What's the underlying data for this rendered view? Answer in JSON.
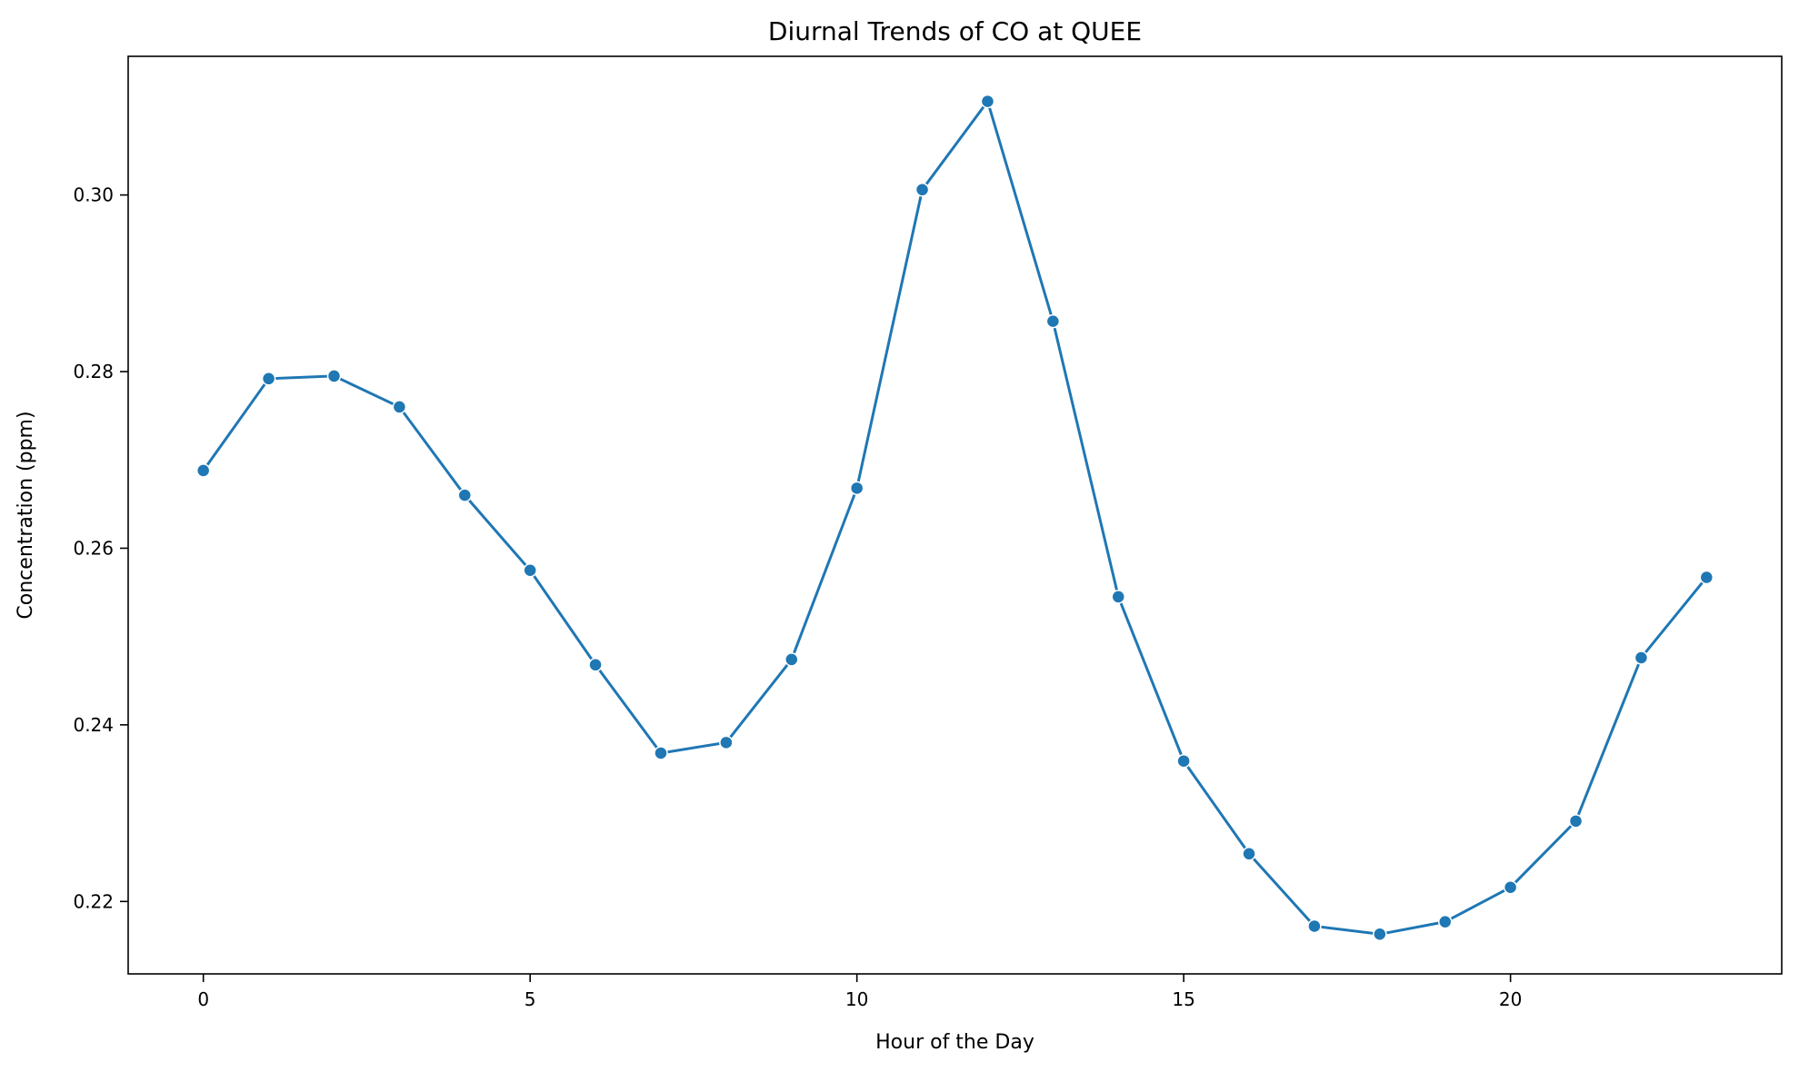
{
  "chart_data": {
    "type": "line",
    "title": "Diurnal Trends of CO at QUEE",
    "xlabel": "Hour of the Day",
    "ylabel": "Concentration (ppm)",
    "x": [
      0,
      1,
      2,
      3,
      4,
      5,
      6,
      7,
      8,
      9,
      10,
      11,
      12,
      13,
      14,
      15,
      16,
      17,
      18,
      19,
      20,
      21,
      22,
      23
    ],
    "series": [
      {
        "values": [
          0.2688,
          0.2792,
          0.2795,
          0.276,
          0.266,
          0.2575,
          0.2468,
          0.2368,
          0.238,
          0.2474,
          0.2668,
          0.3006,
          0.3106,
          0.2857,
          0.2545,
          0.2359,
          0.2254,
          0.2172,
          0.2163,
          0.2177,
          0.2216,
          0.2291,
          0.2476,
          0.2567
        ]
      }
    ],
    "xlim": [
      -1.15,
      24.15
    ],
    "ylim": [
      0.2118,
      0.3157
    ],
    "xticks": [
      0,
      5,
      10,
      15,
      20
    ],
    "xtick_labels": [
      "0",
      "5",
      "10",
      "15",
      "20"
    ],
    "yticks": [
      0.22,
      0.24,
      0.26,
      0.28,
      0.3
    ],
    "ytick_labels": [
      "0.22",
      "0.24",
      "0.26",
      "0.28",
      "0.30"
    ],
    "grid": false,
    "markers": true,
    "color": "#1f77b4"
  }
}
